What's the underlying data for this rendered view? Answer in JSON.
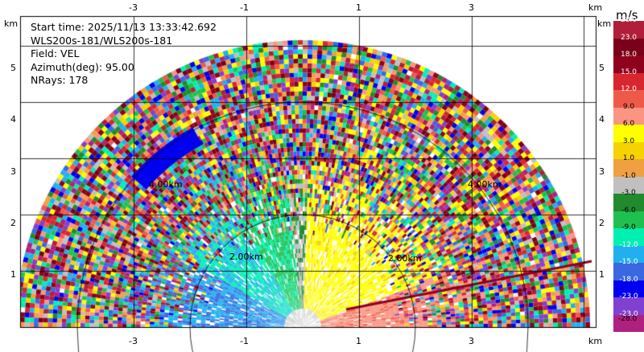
{
  "info": {
    "start_time": "Start time: 2025/11/13 13:33:42.692",
    "instrument": "WLS200s-181/WLS200s-181",
    "field": "Field: VEL",
    "azimuth": "Azimuth(deg): 95.00",
    "nrays": "NRays: 178"
  },
  "axes": {
    "x_ticks": [
      "-3",
      "-1",
      "1",
      "3"
    ],
    "x_tick_values": [
      -3,
      -1,
      1,
      3
    ],
    "y_ticks": [
      "1",
      "2",
      "3",
      "4",
      "5"
    ],
    "y_tick_values": [
      1,
      2,
      3,
      4,
      5
    ],
    "unit": "km"
  },
  "range_rings": {
    "labels": [
      "2.00km",
      "4.00km",
      "2.00km",
      "4.00km"
    ]
  },
  "colorbar": {
    "title": "m/s",
    "labels": [
      "28.0",
      "23.0",
      "18.0",
      "15.0",
      "12.0",
      "9.0",
      "6.0",
      "3.0",
      "1.0",
      "-1.0",
      "-3.0",
      "-6.0",
      "-9.0",
      "-12.0",
      "-15.0",
      "-18.0",
      "-23.0",
      "-28.0"
    ],
    "colors": [
      "#b11e3a",
      "#7a0019",
      "#8f001c",
      "#d8262e",
      "#ef5a48",
      "#fa9581",
      "#ffff00",
      "#f4d300",
      "#f0a040",
      "#c0c0c0",
      "#208a2c",
      "#20c050",
      "#00f0b0",
      "#20b0f0",
      "#3a68e0",
      "#0000f0",
      "#8040d0",
      "#b02080"
    ]
  }
}
